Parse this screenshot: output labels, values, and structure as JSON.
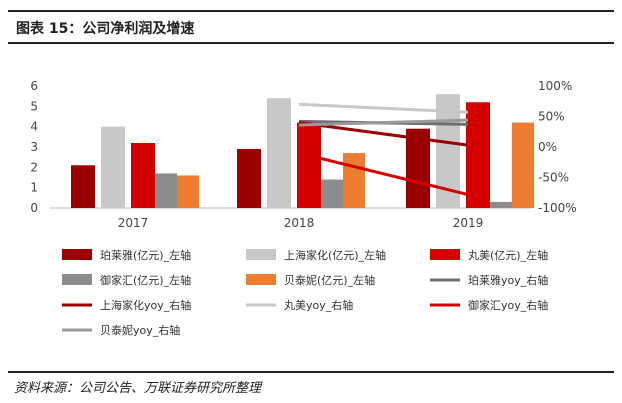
{
  "header": {
    "title": "图表 15：公司净利润及增速"
  },
  "footer": {
    "source": "资料来源：公司公告、万联证券研究所整理"
  },
  "chart_data": {
    "type": "bar",
    "categories": [
      "2017",
      "2018",
      "2019"
    ],
    "bar_series": [
      {
        "name": "珀莱雅(亿元)_左轴",
        "color": "#9b0000",
        "values": [
          2.1,
          2.9,
          3.9
        ]
      },
      {
        "name": "上海家化(亿元)_左轴",
        "color": "#c8c8c8",
        "values": [
          4.0,
          5.4,
          5.6
        ]
      },
      {
        "name": "丸美(亿元)_左轴",
        "color": "#d40000",
        "values": [
          3.2,
          4.2,
          5.2
        ]
      },
      {
        "name": "御家汇(亿元)_左轴",
        "color": "#8c8c8c",
        "values": [
          1.7,
          1.4,
          0.3
        ]
      },
      {
        "name": "贝泰妮(亿元)_左轴",
        "color": "#ed7d31",
        "values": [
          1.6,
          2.7,
          4.2
        ]
      }
    ],
    "line_series": [
      {
        "name": "珀莱雅yoy_右轴",
        "color": "#6e6e6e",
        "values": [
          null,
          42,
          37
        ]
      },
      {
        "name": "上海家化yoy_右轴",
        "color": "#9b0000",
        "values": [
          null,
          40,
          3
        ]
      },
      {
        "name": "丸美yoy_右轴",
        "color": "#c8c8c8",
        "values": [
          null,
          70,
          57
        ]
      },
      {
        "name": "御家汇yoy_右轴",
        "color": "#d40000",
        "values": [
          null,
          -10,
          -78
        ]
      },
      {
        "name": "贝泰妮yoy_右轴",
        "color": "#9a9a9a",
        "values": [
          null,
          36,
          44
        ]
      }
    ],
    "y_left": {
      "ticks": [
        "0",
        "1",
        "2",
        "3",
        "4",
        "5",
        "6"
      ],
      "lim": [
        0,
        6
      ]
    },
    "y_right": {
      "ticks": [
        "-100%",
        "-50%",
        "0%",
        "50%",
        "100%"
      ],
      "lim": [
        -100,
        100
      ]
    },
    "legend_placement": "bottom",
    "grid": false
  }
}
